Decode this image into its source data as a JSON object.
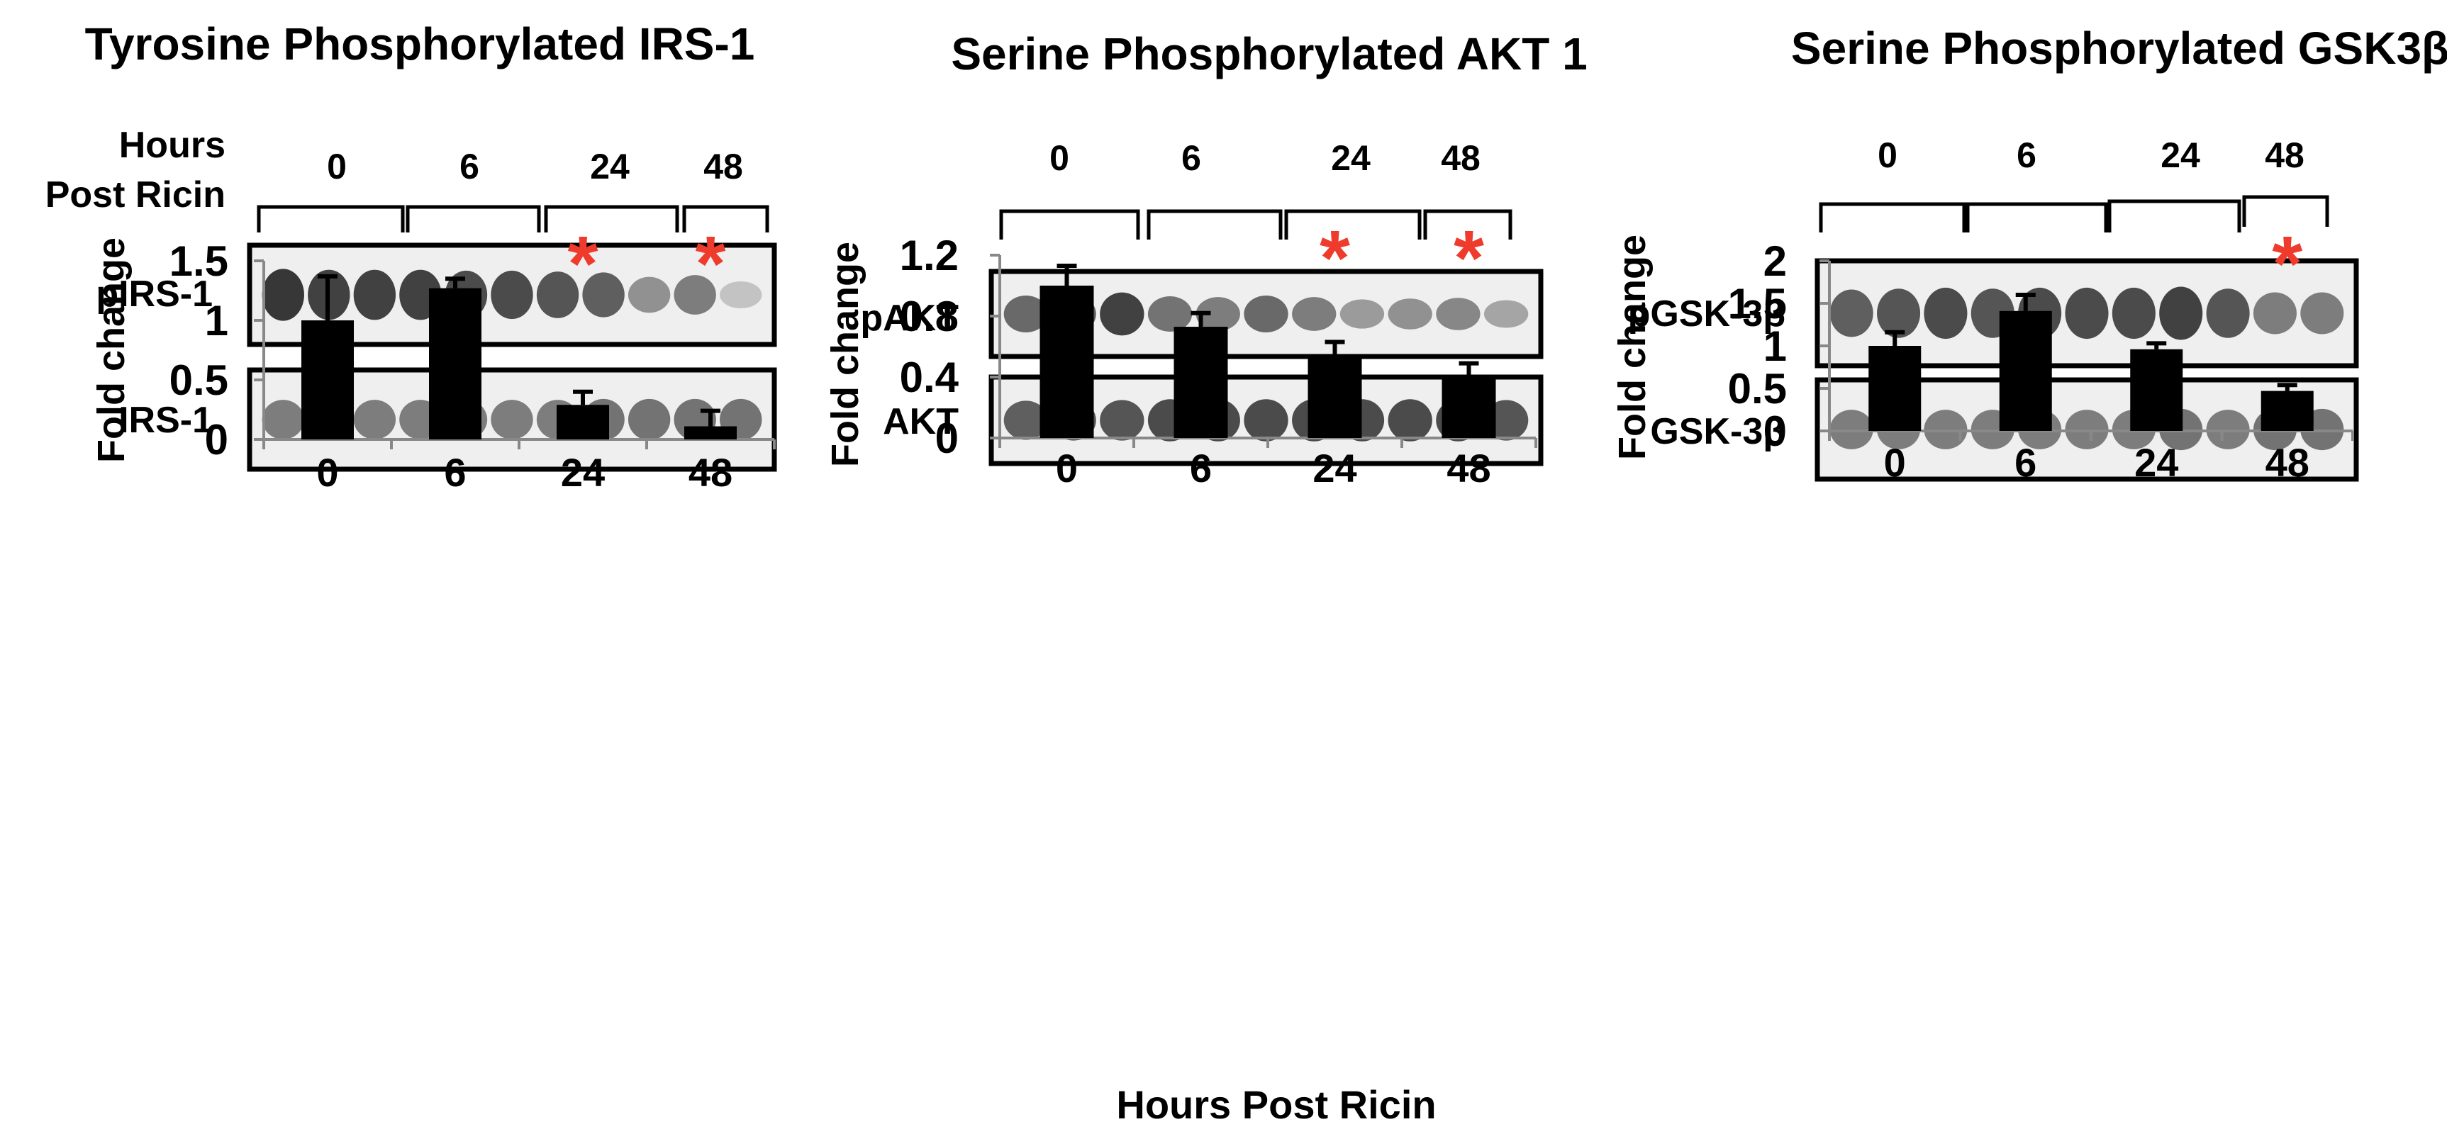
{
  "panels": [
    {
      "id": "irs1",
      "title": "Tyrosine Phosphorylated IRS-1",
      "header_label_lines": [
        "Hours",
        "Post Ricin"
      ],
      "time_labels": [
        "0",
        "6",
        "24",
        "48"
      ],
      "blots": [
        {
          "label": "pIRS-1",
          "intensity": [
            0.9,
            0.85,
            0.85,
            0.85,
            0.8,
            0.8,
            0.75,
            0.7,
            0.45,
            0.55,
            0.2
          ]
        },
        {
          "label": "IRS-1",
          "intensity": [
            0.55,
            0.55,
            0.55,
            0.55,
            0.55,
            0.55,
            0.55,
            0.6,
            0.6,
            0.6,
            0.6
          ]
        }
      ]
    },
    {
      "id": "akt1",
      "title": "Serine Phosphorylated AKT 1",
      "time_labels": [
        "0",
        "6",
        "24",
        "48"
      ],
      "blots": [
        {
          "label": "pAKT",
          "intensity": [
            0.65,
            0.7,
            0.85,
            0.6,
            0.55,
            0.65,
            0.55,
            0.4,
            0.45,
            0.5,
            0.35
          ]
        },
        {
          "label": "AKT",
          "intensity": [
            0.7,
            0.75,
            0.75,
            0.8,
            0.8,
            0.8,
            0.8,
            0.8,
            0.8,
            0.8,
            0.75
          ]
        }
      ]
    },
    {
      "id": "gsk3b",
      "title": "Serine Phosphorylated GSK3β",
      "time_labels": [
        "0",
        "6",
        "24",
        "48"
      ],
      "blots": [
        {
          "label": "pGSK-3β",
          "intensity": [
            0.7,
            0.75,
            0.8,
            0.75,
            0.8,
            0.8,
            0.8,
            0.85,
            0.75,
            0.55,
            0.55
          ]
        },
        {
          "label": "GSK-3β",
          "intensity": [
            0.55,
            0.55,
            0.55,
            0.55,
            0.55,
            0.55,
            0.55,
            0.6,
            0.55,
            0.6,
            0.6
          ]
        }
      ]
    }
  ],
  "chart_data": [
    {
      "type": "bar",
      "categories": [
        "0",
        "6",
        "24",
        "48"
      ],
      "values": [
        1.0,
        1.27,
        0.29,
        0.11
      ],
      "errors": [
        0.37,
        0.08,
        0.11,
        0.13
      ],
      "significant": [
        false,
        false,
        true,
        true
      ],
      "significance_marker": "*",
      "ylabel": "Fold change",
      "xlabel": "",
      "ylim": [
        0,
        1.5
      ],
      "yticks": [
        0,
        0.5,
        1,
        1.5
      ],
      "ytick_labels": [
        "0",
        "0.5",
        "1",
        "1.5"
      ],
      "bar_color": "#000000",
      "star_color": "#ef3b2c"
    },
    {
      "type": "bar",
      "categories": [
        "0",
        "6",
        "24",
        "48"
      ],
      "values": [
        1.0,
        0.73,
        0.53,
        0.39
      ],
      "errors": [
        0.13,
        0.09,
        0.1,
        0.1
      ],
      "significant": [
        false,
        false,
        true,
        true
      ],
      "significance_marker": "*",
      "ylabel": "Fold change",
      "xlabel": "Hours Post Ricin",
      "ylim": [
        0,
        1.2
      ],
      "yticks": [
        0,
        0.4,
        0.8,
        1.2
      ],
      "ytick_labels": [
        "0",
        "0.4",
        "0.8",
        "1.2"
      ],
      "bar_color": "#000000",
      "star_color": "#ef3b2c"
    },
    {
      "type": "bar",
      "categories": [
        "0",
        "6",
        "24",
        "48"
      ],
      "values": [
        1.0,
        1.41,
        0.96,
        0.47
      ],
      "errors": [
        0.16,
        0.19,
        0.07,
        0.07
      ],
      "significant": [
        false,
        false,
        false,
        true
      ],
      "significance_marker": "*",
      "ylabel": "Fold change",
      "xlabel": "",
      "ylim": [
        0,
        2
      ],
      "yticks": [
        0,
        0.5,
        1,
        1.5,
        2
      ],
      "ytick_labels": [
        "0",
        "0.5",
        "1",
        "1.5",
        "2"
      ],
      "bar_color": "#000000",
      "star_color": "#ef3b2c"
    }
  ]
}
